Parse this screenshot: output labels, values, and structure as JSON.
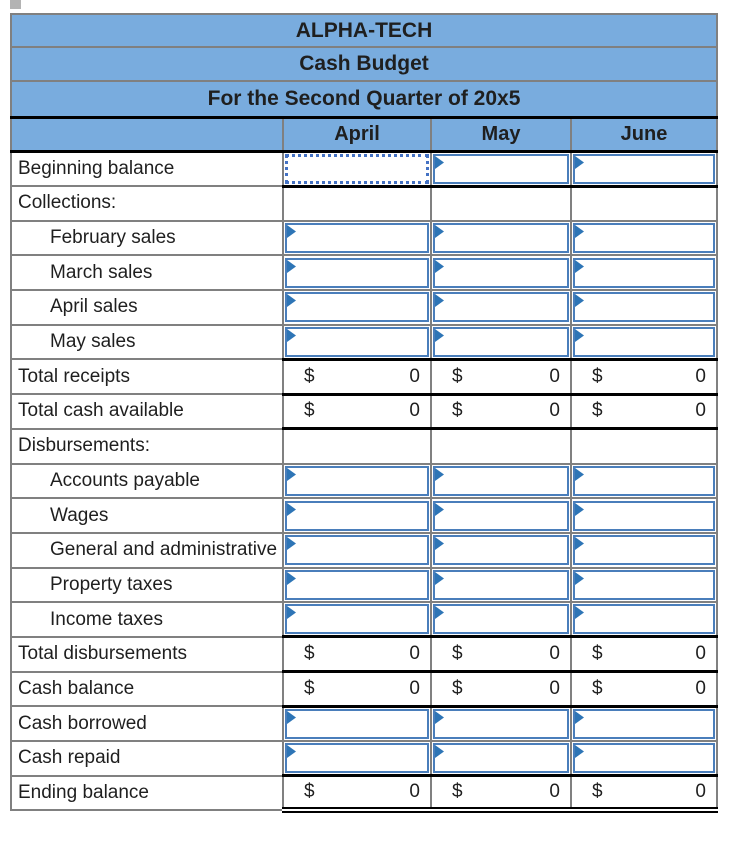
{
  "page": {
    "background": "#ffffff"
  },
  "colors": {
    "header_fill": "#79acde",
    "grid_border": "#808080",
    "strong_border": "#000000",
    "input_cell_border": "#4a7ebb",
    "selection_border": "#4472c4",
    "answer_flag": "#2e75b6",
    "text": "#1f1f1f"
  },
  "table": {
    "title_company": "ALPHA-TECH",
    "title_report": "Cash Budget",
    "title_period": "For the Second Quarter of 20x5",
    "columns": [
      "April",
      "May",
      "June"
    ],
    "rows": [
      {
        "label": "Beginning balance",
        "indent": false,
        "value_border": "black",
        "cells": [
          {
            "type": "selected"
          },
          {
            "type": "input"
          },
          {
            "type": "input"
          }
        ]
      },
      {
        "label": "Collections:",
        "indent": false,
        "value_border": "gray",
        "cells": [
          {
            "type": "blank"
          },
          {
            "type": "blank"
          },
          {
            "type": "blank"
          }
        ]
      },
      {
        "label": "February sales",
        "indent": true,
        "value_border": "gray",
        "cells": [
          {
            "type": "input"
          },
          {
            "type": "input"
          },
          {
            "type": "input"
          }
        ]
      },
      {
        "label": "March sales",
        "indent": true,
        "value_border": "gray",
        "cells": [
          {
            "type": "input"
          },
          {
            "type": "input"
          },
          {
            "type": "input"
          }
        ]
      },
      {
        "label": "April sales",
        "indent": true,
        "value_border": "gray",
        "cells": [
          {
            "type": "input"
          },
          {
            "type": "input"
          },
          {
            "type": "input"
          }
        ]
      },
      {
        "label": "May sales",
        "indent": true,
        "value_border": "black",
        "cells": [
          {
            "type": "input"
          },
          {
            "type": "input"
          },
          {
            "type": "input"
          }
        ]
      },
      {
        "label": "Total receipts",
        "indent": false,
        "value_border": "black",
        "cells": [
          {
            "type": "value",
            "currency": "$",
            "amount": "0"
          },
          {
            "type": "value",
            "currency": "$",
            "amount": "0"
          },
          {
            "type": "value",
            "currency": "$",
            "amount": "0"
          }
        ]
      },
      {
        "label": "Total cash available",
        "indent": false,
        "value_border": "black",
        "cells": [
          {
            "type": "value",
            "currency": "$",
            "amount": "0"
          },
          {
            "type": "value",
            "currency": "$",
            "amount": "0"
          },
          {
            "type": "value",
            "currency": "$",
            "amount": "0"
          }
        ]
      },
      {
        "label": "Disbursements:",
        "indent": false,
        "value_border": "gray",
        "cells": [
          {
            "type": "blank"
          },
          {
            "type": "blank"
          },
          {
            "type": "blank"
          }
        ]
      },
      {
        "label": "Accounts payable",
        "indent": true,
        "value_border": "gray",
        "cells": [
          {
            "type": "input"
          },
          {
            "type": "input"
          },
          {
            "type": "input"
          }
        ]
      },
      {
        "label": "Wages",
        "indent": true,
        "value_border": "gray",
        "cells": [
          {
            "type": "input"
          },
          {
            "type": "input"
          },
          {
            "type": "input"
          }
        ]
      },
      {
        "label": "General and administrative",
        "indent": true,
        "value_border": "gray",
        "cells": [
          {
            "type": "input"
          },
          {
            "type": "input"
          },
          {
            "type": "input"
          }
        ]
      },
      {
        "label": "Property taxes",
        "indent": true,
        "value_border": "gray",
        "cells": [
          {
            "type": "input"
          },
          {
            "type": "input"
          },
          {
            "type": "input"
          }
        ]
      },
      {
        "label": "Income taxes",
        "indent": true,
        "value_border": "black",
        "cells": [
          {
            "type": "input"
          },
          {
            "type": "input"
          },
          {
            "type": "input"
          }
        ]
      },
      {
        "label": "Total disbursements",
        "indent": false,
        "value_border": "black",
        "cells": [
          {
            "type": "value",
            "currency": "$",
            "amount": "0"
          },
          {
            "type": "value",
            "currency": "$",
            "amount": "0"
          },
          {
            "type": "value",
            "currency": "$",
            "amount": "0"
          }
        ]
      },
      {
        "label": "Cash balance",
        "indent": false,
        "value_border": "black",
        "cells": [
          {
            "type": "value",
            "currency": "$",
            "amount": "0"
          },
          {
            "type": "value",
            "currency": "$",
            "amount": "0"
          },
          {
            "type": "value",
            "currency": "$",
            "amount": "0"
          }
        ]
      },
      {
        "label": "Cash borrowed",
        "indent": false,
        "value_border": "gray",
        "cells": [
          {
            "type": "input"
          },
          {
            "type": "input"
          },
          {
            "type": "input"
          }
        ]
      },
      {
        "label": "Cash repaid",
        "indent": false,
        "value_border": "black",
        "cells": [
          {
            "type": "input"
          },
          {
            "type": "input"
          },
          {
            "type": "input"
          }
        ]
      },
      {
        "label": "Ending balance",
        "indent": false,
        "value_border": "double",
        "cells": [
          {
            "type": "value",
            "currency": "$",
            "amount": "0"
          },
          {
            "type": "value",
            "currency": "$",
            "amount": "0"
          },
          {
            "type": "value",
            "currency": "$",
            "amount": "0"
          }
        ]
      }
    ]
  }
}
